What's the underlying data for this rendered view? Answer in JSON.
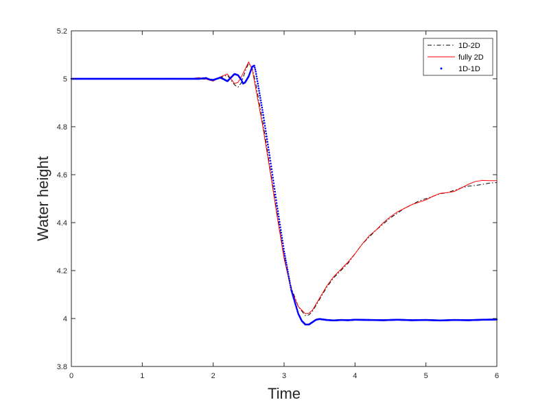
{
  "chart_data": {
    "type": "line",
    "title": "",
    "xlabel": "Time",
    "ylabel": "Water height",
    "xlim": [
      0,
      6
    ],
    "ylim": [
      3.8,
      5.2
    ],
    "xticks": [
      "0",
      "1",
      "2",
      "3",
      "4",
      "5",
      "6"
    ],
    "yticks": [
      "3.8",
      "4",
      "4.2",
      "4.4",
      "4.6",
      "4.8",
      "5",
      "5.2"
    ],
    "grid": false,
    "legend_position": "top-right",
    "series": [
      {
        "name": "1D-2D",
        "style": "dash-dot",
        "color": "#000000",
        "points": [
          [
            0,
            5.0
          ],
          [
            1.5,
            5.0
          ],
          [
            1.7,
            5.0
          ],
          [
            1.9,
            4.998
          ],
          [
            2.0,
            4.995
          ],
          [
            2.1,
            5.005
          ],
          [
            2.2,
            5.015
          ],
          [
            2.25,
            4.995
          ],
          [
            2.3,
            4.975
          ],
          [
            2.35,
            4.965
          ],
          [
            2.4,
            4.985
          ],
          [
            2.45,
            5.03
          ],
          [
            2.5,
            5.065
          ],
          [
            2.55,
            5.045
          ],
          [
            2.6,
            4.98
          ],
          [
            2.7,
            4.82
          ],
          [
            2.8,
            4.63
          ],
          [
            2.9,
            4.44
          ],
          [
            3.0,
            4.26
          ],
          [
            3.1,
            4.13
          ],
          [
            3.2,
            4.05
          ],
          [
            3.3,
            4.012
          ],
          [
            3.35,
            4.015
          ],
          [
            3.4,
            4.03
          ],
          [
            3.5,
            4.08
          ],
          [
            3.6,
            4.13
          ],
          [
            3.7,
            4.17
          ],
          [
            3.8,
            4.2
          ],
          [
            3.9,
            4.23
          ],
          [
            4.0,
            4.27
          ],
          [
            4.1,
            4.31
          ],
          [
            4.2,
            4.34
          ],
          [
            4.3,
            4.37
          ],
          [
            4.4,
            4.395
          ],
          [
            4.5,
            4.42
          ],
          [
            4.6,
            4.44
          ],
          [
            4.7,
            4.46
          ],
          [
            4.8,
            4.475
          ],
          [
            4.9,
            4.49
          ],
          [
            5.0,
            4.5
          ],
          [
            5.1,
            4.51
          ],
          [
            5.2,
            4.52
          ],
          [
            5.3,
            4.525
          ],
          [
            5.4,
            4.535
          ],
          [
            5.5,
            4.545
          ],
          [
            5.6,
            4.552
          ],
          [
            5.7,
            4.555
          ],
          [
            5.8,
            4.56
          ],
          [
            5.9,
            4.565
          ],
          [
            6.0,
            4.567
          ]
        ]
      },
      {
        "name": "fully 2D",
        "style": "solid",
        "color": "#ff0000",
        "points": [
          [
            0,
            5.0
          ],
          [
            1.5,
            5.0
          ],
          [
            1.7,
            5.001
          ],
          [
            1.8,
            5.005
          ],
          [
            1.9,
            4.998
          ],
          [
            2.0,
            4.99
          ],
          [
            2.1,
            5.008
          ],
          [
            2.2,
            5.02
          ],
          [
            2.25,
            5.0
          ],
          [
            2.3,
            4.98
          ],
          [
            2.35,
            4.985
          ],
          [
            2.4,
            5.01
          ],
          [
            2.45,
            5.04
          ],
          [
            2.5,
            5.07
          ],
          [
            2.55,
            5.04
          ],
          [
            2.6,
            4.96
          ],
          [
            2.7,
            4.8
          ],
          [
            2.8,
            4.62
          ],
          [
            2.9,
            4.43
          ],
          [
            3.0,
            4.25
          ],
          [
            3.1,
            4.12
          ],
          [
            3.2,
            4.05
          ],
          [
            3.3,
            4.02
          ],
          [
            3.35,
            4.022
          ],
          [
            3.4,
            4.035
          ],
          [
            3.5,
            4.085
          ],
          [
            3.6,
            4.135
          ],
          [
            3.7,
            4.175
          ],
          [
            3.8,
            4.205
          ],
          [
            3.9,
            4.235
          ],
          [
            4.0,
            4.27
          ],
          [
            4.1,
            4.31
          ],
          [
            4.2,
            4.345
          ],
          [
            4.3,
            4.37
          ],
          [
            4.4,
            4.4
          ],
          [
            4.5,
            4.425
          ],
          [
            4.6,
            4.445
          ],
          [
            4.7,
            4.46
          ],
          [
            4.8,
            4.475
          ],
          [
            4.9,
            4.485
          ],
          [
            5.0,
            4.495
          ],
          [
            5.1,
            4.51
          ],
          [
            5.2,
            4.522
          ],
          [
            5.3,
            4.525
          ],
          [
            5.4,
            4.53
          ],
          [
            5.5,
            4.545
          ],
          [
            5.6,
            4.56
          ],
          [
            5.7,
            4.572
          ],
          [
            5.8,
            4.576
          ],
          [
            5.9,
            4.575
          ],
          [
            6.0,
            4.575
          ]
        ]
      },
      {
        "name": "1D-1D",
        "style": "dots",
        "color": "#0000ff",
        "points": [
          [
            0,
            5.0
          ],
          [
            1.5,
            5.0
          ],
          [
            1.6,
            5.0
          ],
          [
            1.7,
            5.0
          ],
          [
            1.8,
            5.0
          ],
          [
            1.9,
            5.003
          ],
          [
            1.95,
            4.997
          ],
          [
            2.0,
            4.995
          ],
          [
            2.05,
            5.0
          ],
          [
            2.1,
            5.005
          ],
          [
            2.15,
            4.998
          ],
          [
            2.2,
            4.99
          ],
          [
            2.25,
            5.005
          ],
          [
            2.3,
            5.02
          ],
          [
            2.35,
            5.015
          ],
          [
            2.4,
            4.995
          ],
          [
            2.42,
            4.98
          ],
          [
            2.45,
            4.985
          ],
          [
            2.5,
            5.01
          ],
          [
            2.55,
            5.05
          ],
          [
            2.58,
            5.055
          ],
          [
            2.6,
            5.03
          ],
          [
            2.7,
            4.86
          ],
          [
            2.8,
            4.67
          ],
          [
            2.9,
            4.47
          ],
          [
            3.0,
            4.28
          ],
          [
            3.1,
            4.12
          ],
          [
            3.2,
            4.02
          ],
          [
            3.25,
            3.99
          ],
          [
            3.3,
            3.975
          ],
          [
            3.35,
            3.975
          ],
          [
            3.4,
            3.985
          ],
          [
            3.45,
            3.995
          ],
          [
            3.5,
            3.998
          ],
          [
            3.6,
            3.994
          ],
          [
            3.7,
            3.992
          ],
          [
            3.8,
            3.994
          ],
          [
            3.9,
            3.993
          ],
          [
            4.0,
            3.995
          ],
          [
            4.2,
            3.994
          ],
          [
            4.4,
            3.993
          ],
          [
            4.6,
            3.995
          ],
          [
            4.8,
            3.993
          ],
          [
            5.0,
            3.994
          ],
          [
            5.2,
            3.992
          ],
          [
            5.4,
            3.994
          ],
          [
            5.6,
            3.993
          ],
          [
            5.8,
            3.995
          ],
          [
            6.0,
            3.996
          ]
        ]
      }
    ]
  }
}
